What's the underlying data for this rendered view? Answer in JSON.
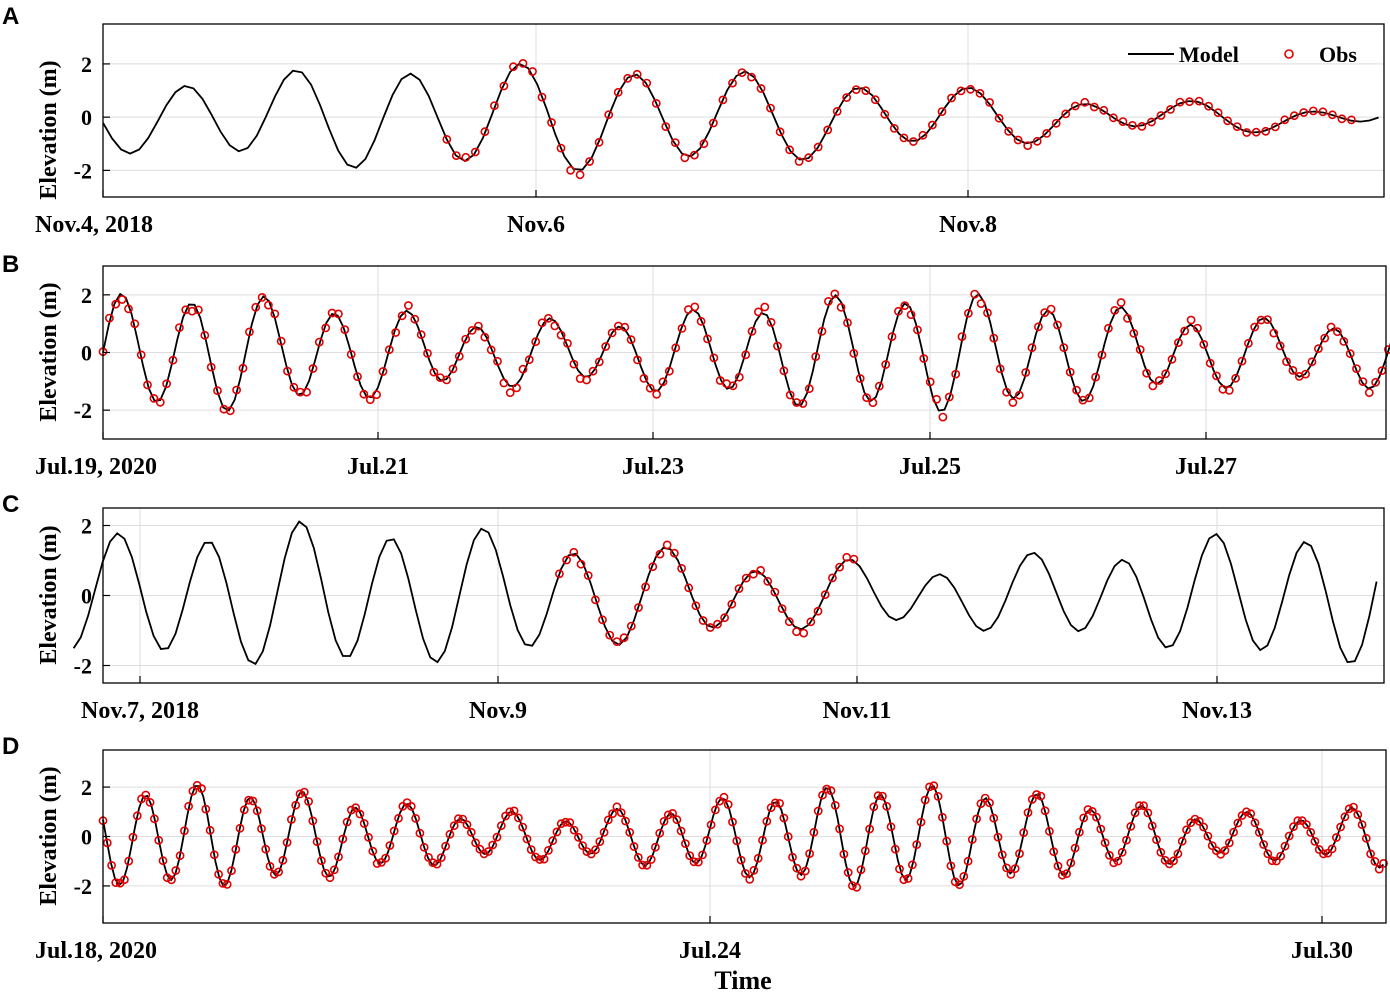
{
  "colors": {
    "model": "#000000",
    "obs": "#e00000",
    "grid": "#dedede",
    "axis": "#000000"
  },
  "legend": {
    "model": "Model",
    "obs": "Obs",
    "placement": "top-right"
  },
  "xlabel": "Time",
  "chart_data": [
    {
      "panel": "A",
      "type": "line",
      "ylabel": "Elevation (m)",
      "ylim": [
        -3,
        3.5
      ],
      "yticks": [
        -2,
        0,
        2
      ],
      "x_range_days": [
        "Nov.4, 2018",
        "Nov.9, 2018 ~21h"
      ],
      "xticks": [
        "Nov.4, 2018",
        "Nov.6",
        "Nov.8"
      ],
      "grid": true,
      "series": [
        {
          "name": "Model",
          "tide": {
            "start": "Nov.4, 2018 00:00",
            "end": "Nov.9, 2018 21:00",
            "n": 142,
            "A1": 1.1,
            "A2": 0.75,
            "phase": 3.3,
            "period_h": 12.42,
            "mod_period_h": 180,
            "mod_phase": 0.0,
            "tide_seed": 1
          }
        },
        {
          "name": "Obs",
          "tide": {
            "start": "Nov.5, 2018 14:00",
            "end": "Nov.9, 2018 18:00",
            "n": 96,
            "A1": 1.1,
            "A2": 0.75,
            "phase": 3.3,
            "period_h": 12.42,
            "mod_period_h": 180,
            "mod_phase": 0.0,
            "tide_seed": 1,
            "noise": 0.12
          }
        }
      ]
    },
    {
      "panel": "B",
      "type": "line",
      "ylabel": "Elevation (m)",
      "ylim": [
        -3,
        3
      ],
      "yticks": [
        -2,
        0,
        2
      ],
      "x_range_days": [
        "Jul.19, 2020",
        "Jul.28, 2020 ~22h"
      ],
      "xticks": [
        "Jul.19, 2020",
        "Jul.21",
        "Jul.23",
        "Jul.25",
        "Jul.27"
      ],
      "grid": true,
      "series": [
        {
          "name": "Model",
          "tide": {
            "start": "Jul.19, 2020 00:00",
            "end": "Jul.28, 2020 22:00",
            "n": 240,
            "A1": 1.45,
            "A2": 0.45,
            "phase": 0.0,
            "period_h": 12.42,
            "mod_period_h": 130,
            "mod_phase": 1.0,
            "tide_seed": 2
          }
        },
        {
          "name": "Obs",
          "tide": {
            "start": "Jul.19, 2020 00:00",
            "end": "Jul.28, 2020 22:00",
            "n": 216,
            "A1": 1.45,
            "A2": 0.45,
            "phase": 0.0,
            "period_h": 12.42,
            "mod_period_h": 130,
            "mod_phase": 1.0,
            "tide_seed": 2,
            "noise": 0.18
          }
        }
      ]
    },
    {
      "panel": "C",
      "type": "line",
      "ylabel": "Elevation (m)",
      "ylim": [
        -2.5,
        2.5
      ],
      "yticks": [
        -2,
        0,
        2
      ],
      "x_range_days": [
        "Nov.7, 2018",
        "Nov.14, 2018 ~05h"
      ],
      "xticks": [
        "Nov.7, 2018",
        "Nov.9",
        "Nov.11",
        "Nov.13"
      ],
      "grid": true,
      "series": [
        {
          "name": "Model",
          "tide": {
            "start": "Nov.6, 2018 20:00",
            "end": "Nov.14, 2018 05:00",
            "n": 180,
            "A1": 1.35,
            "A2": 0.55,
            "phase": 0.6,
            "period_h": 12.42,
            "mod_period_h": 150,
            "mod_phase": 0.3,
            "tide_seed": 3
          }
        },
        {
          "name": "Obs",
          "tide": {
            "start": "Nov.9, 2018 14:00",
            "end": "Nov.11, 2018 06:00",
            "n": 42,
            "A1": 1.35,
            "A2": 0.55,
            "phase": 0.6,
            "period_h": 12.42,
            "mod_period_h": 150,
            "mod_phase": 0.3,
            "tide_seed": 3,
            "noise": 0.12
          }
        }
      ]
    },
    {
      "panel": "D",
      "type": "line",
      "ylabel": "Elevation (m)",
      "ylim": [
        -3.5,
        3.5
      ],
      "yticks": [
        -2,
        0,
        2
      ],
      "x_range_days": [
        "Jul.18, 2020",
        "Jul.30, 2020 ~15h"
      ],
      "xticks": [
        "Jul.18, 2020",
        "Jul.24",
        "Jul.30"
      ],
      "grid": true,
      "series": [
        {
          "name": "Model",
          "tide": {
            "start": "Jul.18, 2020 00:00",
            "end": "Jul.30, 2020 15:00",
            "n": 320,
            "A1": 1.35,
            "A2": 0.55,
            "phase": 2.8,
            "period_h": 12.42,
            "mod_period_h": 170,
            "mod_phase": 0.9,
            "tide_seed": 4
          }
        },
        {
          "name": "Obs",
          "tide": {
            "start": "Jul.18, 2020 00:00",
            "end": "Jul.30, 2020 15:00",
            "n": 300,
            "A1": 1.35,
            "A2": 0.55,
            "phase": 2.8,
            "period_h": 12.42,
            "mod_period_h": 170,
            "mod_phase": 0.9,
            "tide_seed": 4,
            "noise": 0.08
          }
        }
      ]
    }
  ]
}
